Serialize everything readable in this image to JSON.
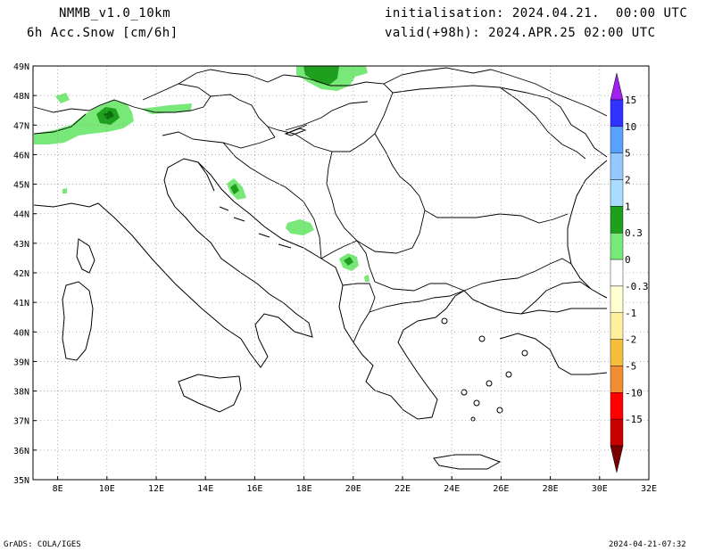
{
  "header": {
    "model": "NMMB_v1.0_10km",
    "field": "6h Acc.Snow [cm/6h]",
    "init": "initialisation: 2024.04.21.  00:00 UTC",
    "valid": "valid(+98h): 2024.APR.25 02:00 UTC"
  },
  "map": {
    "lon_ticks": [
      "8E",
      "10E",
      "12E",
      "14E",
      "16E",
      "18E",
      "20E",
      "22E",
      "24E",
      "26E",
      "28E",
      "30E",
      "32E"
    ],
    "lat_ticks": [
      "49N",
      "48N",
      "47N",
      "46N",
      "45N",
      "44N",
      "43N",
      "42N",
      "41N",
      "40N",
      "39N",
      "38N",
      "37N",
      "36N",
      "35N"
    ],
    "lon_range": [
      7,
      32
    ],
    "lat_range": [
      35,
      49
    ],
    "grid": true,
    "snow_areas": [
      {
        "name": "north-hungary-snow",
        "level": 0.3,
        "color": "#78e878"
      },
      {
        "name": "north-hungary-snow-core",
        "level": 1,
        "color": "#1ea01e"
      },
      {
        "name": "alps-snow",
        "level": 0.3,
        "color": "#78e878"
      },
      {
        "name": "alps-snow-core",
        "level": 1,
        "color": "#1ea01e"
      },
      {
        "name": "alps-snow-peak",
        "level": 2,
        "color": "#0a6e0a"
      },
      {
        "name": "velebit-snow",
        "level": 0.3,
        "color": "#78e878"
      },
      {
        "name": "velebit-snow-core",
        "level": 1,
        "color": "#1ea01e"
      },
      {
        "name": "bosnia-snow",
        "level": 0.3,
        "color": "#78e878"
      },
      {
        "name": "montenegro-snow",
        "level": 0.3,
        "color": "#78e878"
      },
      {
        "name": "montenegro-snow-core",
        "level": 1,
        "color": "#1ea01e"
      }
    ]
  },
  "colorbar": {
    "labels": [
      "15",
      "10",
      "5",
      "2",
      "1",
      "0.3",
      "0",
      "-0.3",
      "-1",
      "-2",
      "-5",
      "-10",
      "-15"
    ],
    "colors": [
      "#a020f0",
      "#3232ff",
      "#5aa0ff",
      "#96c8ff",
      "#aadcff",
      "#1ea01e",
      "#78e878",
      "#ffffff",
      "#ffffd2",
      "#fff0a0",
      "#f5be3c",
      "#f08c32",
      "#ff0000",
      "#c80000",
      "#780000"
    ]
  },
  "footer": {
    "left": "GrADS: COLA/IGES",
    "right": "2024-04-21-07:32"
  }
}
